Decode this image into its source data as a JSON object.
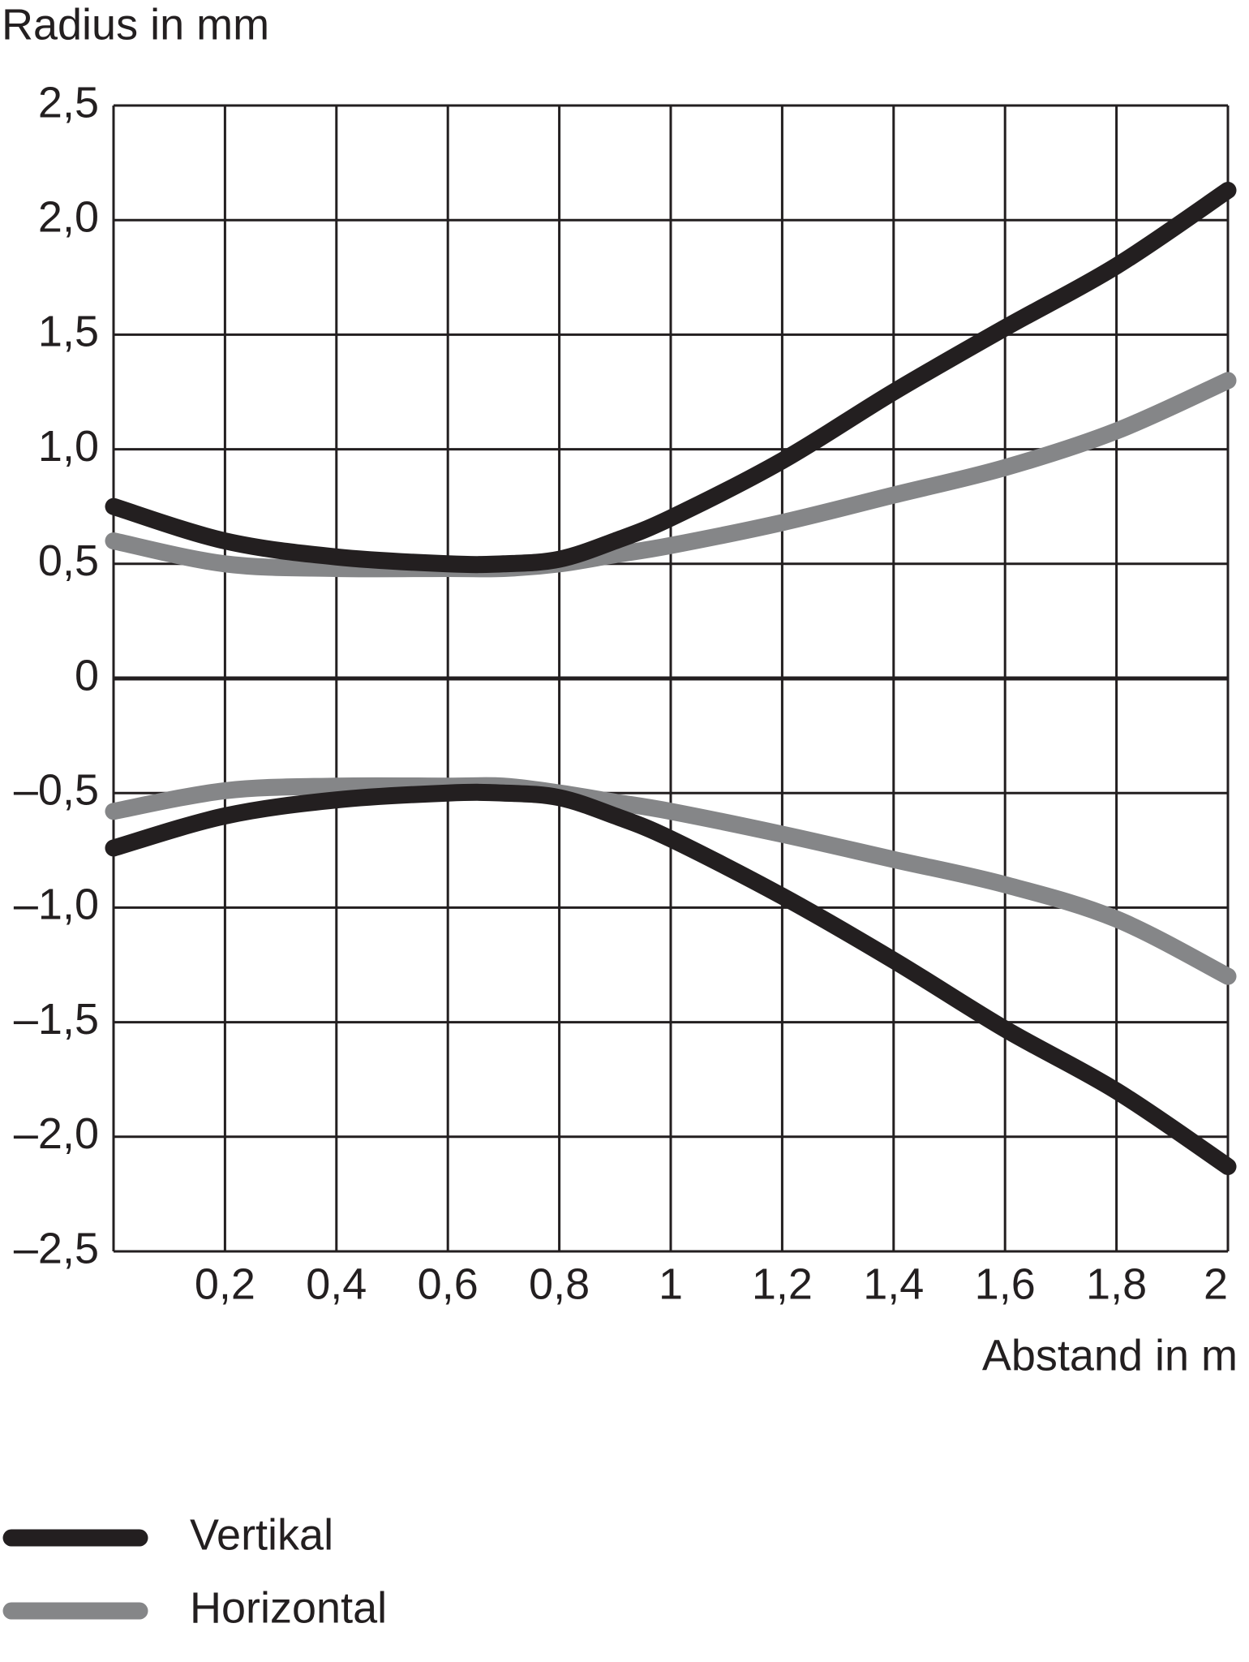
{
  "chart_data": {
    "type": "line",
    "y_label": "Radius in mm",
    "x_label": "Abstand in m",
    "x": [
      0,
      0.2,
      0.4,
      0.6,
      0.7,
      0.8,
      0.9,
      1,
      1.2,
      1.4,
      1.6,
      1.8,
      2
    ],
    "series": [
      {
        "name": "Vertikal",
        "color": "#231f20",
        "values": [
          0.75,
          0.6,
          0.53,
          0.5,
          0.5,
          0.52,
          0.6,
          0.7,
          0.95,
          1.25,
          1.53,
          1.8,
          2.13
        ],
        "lower_values": [
          -0.74,
          -0.6,
          -0.53,
          -0.5,
          -0.5,
          -0.52,
          -0.6,
          -0.7,
          -0.95,
          -1.23,
          -1.53,
          -1.8,
          -2.13
        ]
      },
      {
        "name": "Horizontal",
        "color": "#858688",
        "values": [
          0.6,
          0.5,
          0.48,
          0.48,
          0.48,
          0.5,
          0.54,
          0.58,
          0.68,
          0.8,
          0.92,
          1.08,
          1.3
        ],
        "lower_values": [
          -0.58,
          -0.49,
          -0.47,
          -0.47,
          -0.47,
          -0.5,
          -0.54,
          -0.58,
          -0.68,
          -0.79,
          -0.9,
          -1.05,
          -1.3
        ]
      }
    ],
    "xlim": [
      0,
      2
    ],
    "xticks": [
      {
        "value": 0.2,
        "label": "0,2"
      },
      {
        "value": 0.4,
        "label": "0,4"
      },
      {
        "value": 0.6,
        "label": "0,6"
      },
      {
        "value": 0.8,
        "label": "0,8"
      },
      1,
      {
        "value": 1.2,
        "label": "1,2"
      },
      {
        "value": 1.4,
        "label": "1,4"
      },
      {
        "value": 1.6,
        "label": "1,6"
      },
      {
        "value": 1.8,
        "label": "1,8"
      },
      2
    ],
    "ylim": [
      -2.5,
      2.5
    ],
    "yticks": [
      {
        "value": 2.5,
        "label": "2,5"
      },
      {
        "value": 2,
        "label": "2,0"
      },
      {
        "value": 1.5,
        "label": "1,5"
      },
      {
        "value": 1,
        "label": "1,0"
      },
      {
        "value": 0.5,
        "label": "0,5"
      },
      0,
      {
        "value": -0.5,
        "label": "–0,5"
      },
      {
        "value": -1,
        "label": "–1,0"
      },
      {
        "value": -1.5,
        "label": "–1,5"
      },
      {
        "value": -2,
        "label": "–2,0"
      },
      {
        "value": -2.5,
        "label": "–2,5"
      }
    ],
    "grid": true
  }
}
